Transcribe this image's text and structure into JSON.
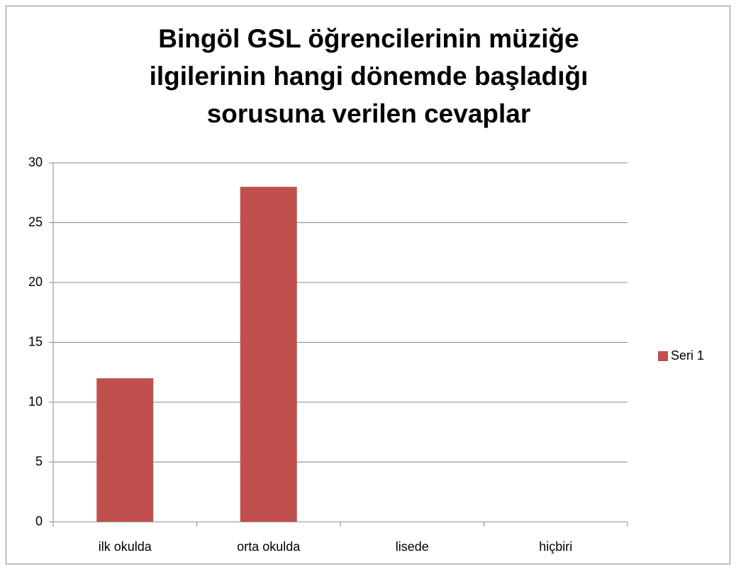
{
  "chart_data": {
    "type": "bar",
    "title": "Bingöl GSL öğrencilerinin müziğe ilgilerinin hangi dönemde başladığı sorusuna verilen cevaplar",
    "categories": [
      "ilk okulda",
      "orta okulda",
      "lisede",
      "hiçbiri"
    ],
    "series": [
      {
        "name": "Seri 1",
        "color": "#c0504d",
        "values": [
          12,
          28,
          0,
          0
        ]
      }
    ],
    "ylim": [
      0,
      30
    ],
    "yticks": [
      0,
      5,
      10,
      15,
      20,
      25,
      30
    ],
    "grid": true,
    "legend": "right"
  }
}
